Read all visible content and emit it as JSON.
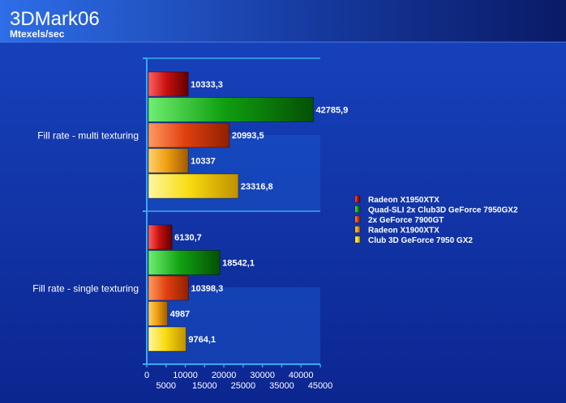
{
  "chart_data": {
    "type": "bar",
    "orientation": "horizontal",
    "title": "3DMark06",
    "subtitle": "Mtexels/sec",
    "xlim": [
      0,
      45000
    ],
    "x_ticks_upper": [
      "0",
      "10000",
      "20000",
      "30000",
      "40000"
    ],
    "x_ticks_lower": [
      "5000",
      "15000",
      "25000",
      "35000",
      "45000"
    ],
    "grid": "none",
    "legend_position": "right",
    "categories": [
      "Fill rate - multi texturing",
      "Fill rate - single texturing"
    ],
    "series": [
      {
        "name": "Radeon X1950XTX",
        "color": "#c81010",
        "values": [
          10333.3,
          6130.7
        ],
        "labels": [
          "10333,3",
          "6130,7"
        ]
      },
      {
        "name": "Quad-SLI 2x Club3D GeForce 7950GX2",
        "color": "#10a010",
        "values": [
          42785.9,
          18542.1
        ],
        "labels": [
          "42785,9",
          "18542,1"
        ]
      },
      {
        "name": "2x GeForce 7900GT",
        "color": "#e05010",
        "values": [
          20993.5,
          10398.3
        ],
        "labels": [
          "20993,5",
          "10398,3"
        ]
      },
      {
        "name": "Radeon X1900XTX",
        "color": "#f0a010",
        "values": [
          10337,
          4987
        ],
        "labels": [
          "10337",
          "4987"
        ]
      },
      {
        "name": "Club 3D GeForce 7950 GX2",
        "color": "#f8dc10",
        "values": [
          23316.8,
          9764.1
        ],
        "labels": [
          "23316,8",
          "9764,1"
        ]
      }
    ]
  }
}
